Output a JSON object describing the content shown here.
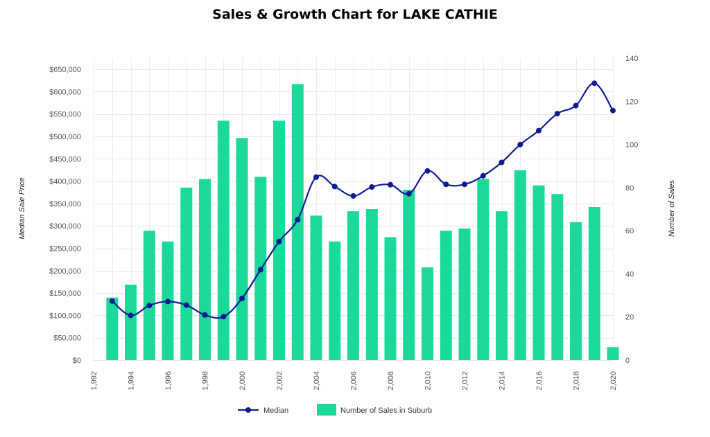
{
  "chart_data": {
    "type": "bar",
    "title": "Sales & Growth Chart for LAKE CATHIE",
    "y_left_label": "Median Sale Price",
    "y_right_label": "Number of Sales",
    "left_axis": {
      "min": 0,
      "max": 675000,
      "ticks": [
        0,
        50000,
        100000,
        150000,
        200000,
        250000,
        300000,
        350000,
        400000,
        450000,
        500000,
        550000,
        600000,
        650000
      ],
      "tick_labels": [
        "$0",
        "$50,000",
        "$100,000",
        "$150,000",
        "$200,000",
        "$250,000",
        "$300,000",
        "$350,000",
        "$400,000",
        "$450,000",
        "$500,000",
        "$550,000",
        "$600,000",
        "$650,000"
      ]
    },
    "right_axis": {
      "min": 0,
      "max": 140,
      "ticks": [
        0,
        20,
        40,
        60,
        80,
        100,
        120,
        140
      ],
      "tick_labels": [
        "0",
        "20",
        "40",
        "60",
        "80",
        "100",
        "120",
        "140"
      ]
    },
    "x_axis": {
      "min": 1992,
      "max": 2020,
      "ticks": [
        1992,
        1994,
        1996,
        1998,
        2000,
        2002,
        2004,
        2006,
        2008,
        2010,
        2012,
        2014,
        2016,
        2018,
        2020
      ],
      "tick_labels": [
        "1,992",
        "1,994",
        "1,996",
        "1,998",
        "2,000",
        "2,002",
        "2,004",
        "2,006",
        "2,008",
        "2,010",
        "2,012",
        "2,014",
        "2,016",
        "2,018",
        "2,020"
      ]
    },
    "series": [
      {
        "name": "Number of Sales in Suburb",
        "type": "bar",
        "axis": "right",
        "color": "#1ad99a",
        "x": [
          1993,
          1994,
          1995,
          1996,
          1997,
          1998,
          1999,
          2000,
          2001,
          2002,
          2003,
          2004,
          2005,
          2006,
          2007,
          2008,
          2009,
          2010,
          2011,
          2012,
          2013,
          2014,
          2015,
          2016,
          2017,
          2018,
          2019,
          2020
        ],
        "values": [
          29,
          35,
          60,
          55,
          80,
          84,
          111,
          103,
          85,
          111,
          128,
          67,
          55,
          69,
          70,
          57,
          79,
          43,
          60,
          61,
          84,
          69,
          88,
          81,
          77,
          64,
          71,
          6
        ]
      },
      {
        "name": "Median",
        "type": "line",
        "axis": "left",
        "color": "#0e1b91",
        "x": [
          1993,
          1994,
          1995,
          1996,
          1997,
          1998,
          1999,
          2000,
          2001,
          2002,
          2003,
          2004,
          2005,
          2006,
          2007,
          2008,
          2009,
          2010,
          2011,
          2012,
          2013,
          2014,
          2015,
          2016,
          2017,
          2018,
          2019,
          2020
        ],
        "values": [
          132000,
          100000,
          122000,
          131000,
          123000,
          101000,
          97000,
          138000,
          202000,
          265000,
          314000,
          409000,
          388000,
          367000,
          387000,
          392000,
          372000,
          423000,
          393000,
          393000,
          412000,
          442000,
          482000,
          513000,
          551000,
          569000,
          619000,
          558000
        ]
      }
    ],
    "legend": [
      {
        "label": "Median",
        "kind": "line",
        "color": "#0e1b91"
      },
      {
        "label": "Number of Sales in Suburb",
        "kind": "bar",
        "color": "#1ad99a"
      }
    ],
    "legend_position": "bottom-center",
    "grid": true
  }
}
